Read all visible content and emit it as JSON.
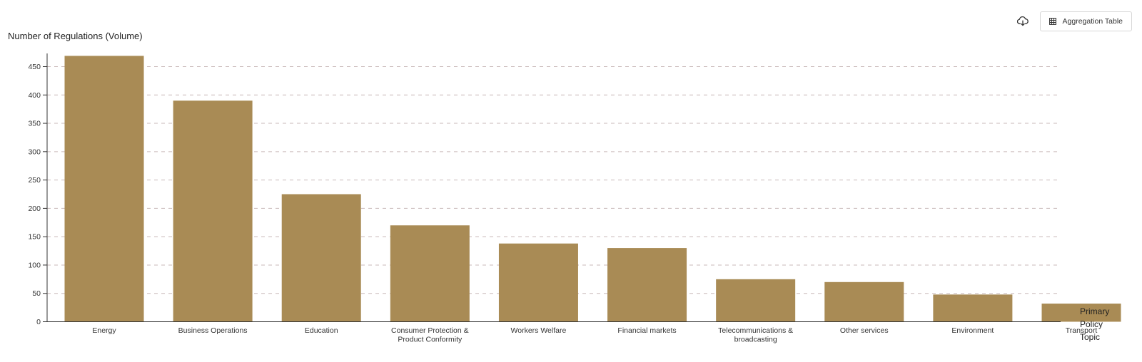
{
  "toolbar": {
    "download_icon": "cloud-download-icon",
    "aggregation_icon": "table-grid-icon",
    "aggregation_label": "Aggregation Table"
  },
  "chart_data": {
    "type": "bar",
    "title": "",
    "ylabel": "Number of Regulations (Volume)",
    "xlabel": "Primary Policy Topic",
    "categories": [
      "Energy",
      "Business Operations",
      "Education",
      "Consumer Protection & Product Conformity",
      "Workers Welfare",
      "Financial markets",
      "Telecommunications & broadcasting",
      "Other services",
      "Environment",
      "Transport"
    ],
    "values": [
      469,
      390,
      225,
      170,
      138,
      130,
      75,
      70,
      48,
      32
    ],
    "ylim": [
      0,
      450
    ],
    "yticks": [
      0,
      50,
      100,
      150,
      200,
      250,
      300,
      350,
      400,
      450
    ],
    "grid": true,
    "bar_color": "#a98b55",
    "grid_color": "#c9b9b9"
  }
}
